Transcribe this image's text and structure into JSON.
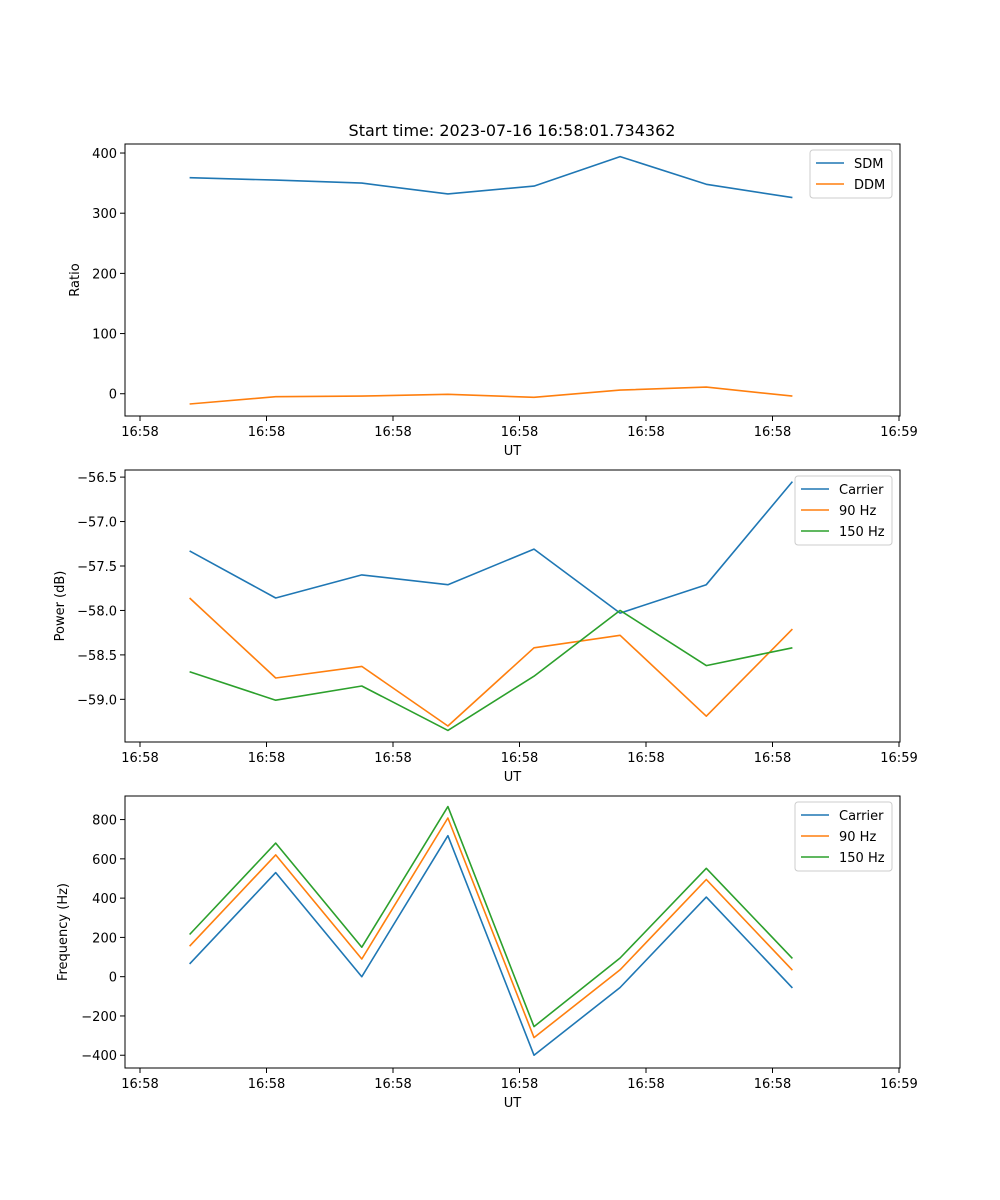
{
  "figure_title": "Start time: 2023-07-16 16:58:01.734362",
  "chart_data": [
    {
      "type": "line",
      "xlabel": "UT",
      "ylabel": "Ratio",
      "x_tick_labels": [
        "16:58",
        "16:58",
        "16:58",
        "16:58",
        "16:58",
        "16:58",
        "16:59"
      ],
      "x": [
        1,
        2,
        3,
        4,
        5,
        6,
        7,
        8
      ],
      "xlim": [
        0.25,
        9.25
      ],
      "ylim": [
        -37,
        415
      ],
      "yticks": [
        0,
        100,
        200,
        300,
        400
      ],
      "y_tick_labels": [
        "0",
        "100",
        "200",
        "300",
        "400"
      ],
      "legend": "top-right",
      "series": [
        {
          "name": "SDM",
          "color": "#1f77b4",
          "values": [
            359,
            355,
            350,
            332,
            345,
            394,
            348,
            326
          ]
        },
        {
          "name": "DDM",
          "color": "#ff7f0e",
          "values": [
            -17,
            -5,
            -4,
            -1,
            -6,
            6,
            11,
            -4
          ]
        }
      ]
    },
    {
      "type": "line",
      "xlabel": "UT",
      "ylabel": "Power (dB)",
      "x_tick_labels": [
        "16:58",
        "16:58",
        "16:58",
        "16:58",
        "16:58",
        "16:58",
        "16:59"
      ],
      "x": [
        1,
        2,
        3,
        4,
        5,
        6,
        7,
        8
      ],
      "xlim": [
        0.25,
        9.25
      ],
      "ylim": [
        -59.48,
        -56.42
      ],
      "yticks": [
        -56.5,
        -57.0,
        -57.5,
        -58.0,
        -58.5,
        -59.0
      ],
      "y_tick_labels": [
        "−56.5",
        "−57.0",
        "−57.5",
        "−58.0",
        "−58.5",
        "−59.0"
      ],
      "legend": "top-right",
      "series": [
        {
          "name": "Carrier",
          "color": "#1f77b4",
          "values": [
            -57.33,
            -57.86,
            -57.6,
            -57.71,
            -57.31,
            -58.03,
            -57.71,
            -56.55
          ]
        },
        {
          "name": "90 Hz",
          "color": "#ff7f0e",
          "values": [
            -57.86,
            -58.76,
            -58.63,
            -59.3,
            -58.42,
            -58.28,
            -59.19,
            -58.21
          ]
        },
        {
          "name": "150 Hz",
          "color": "#2ca02c",
          "values": [
            -58.69,
            -59.01,
            -58.85,
            -59.35,
            -58.74,
            -58.0,
            -58.62,
            -58.42
          ]
        }
      ]
    },
    {
      "type": "line",
      "xlabel": "UT",
      "ylabel": "Frequency (Hz)",
      "x_tick_labels": [
        "16:58",
        "16:58",
        "16:58",
        "16:58",
        "16:58",
        "16:58",
        "16:59"
      ],
      "x": [
        1,
        2,
        3,
        4,
        5,
        6,
        7,
        8
      ],
      "xlim": [
        0.25,
        9.25
      ],
      "ylim": [
        -465,
        920
      ],
      "yticks": [
        800,
        600,
        400,
        200,
        0,
        -200,
        -400
      ],
      "y_tick_labels": [
        "800",
        "600",
        "400",
        "200",
        "0",
        "−200",
        "−400"
      ],
      "legend": "top-right",
      "series": [
        {
          "name": "Carrier",
          "color": "#1f77b4",
          "values": [
            65,
            530,
            0,
            718,
            -400,
            -55,
            405,
            -57
          ]
        },
        {
          "name": "90 Hz",
          "color": "#ff7f0e",
          "values": [
            155,
            620,
            90,
            808,
            -310,
            35,
            495,
            33
          ]
        },
        {
          "name": "150 Hz",
          "color": "#2ca02c",
          "values": [
            215,
            680,
            150,
            866,
            -254,
            95,
            552,
            93
          ]
        }
      ]
    }
  ]
}
